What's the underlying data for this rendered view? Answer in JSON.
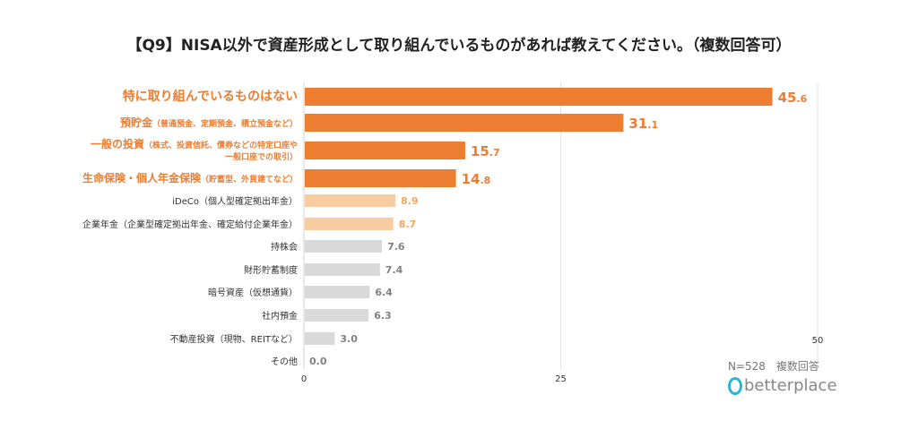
{
  "chart_data": {
    "type": "bar",
    "orientation": "horizontal",
    "title": "【Q9】NISA以外で資産形成として取り組んでいるものがあれば教えてください。（複数回答可）",
    "categories": [
      {
        "main": "特に取り組んでいるものはない",
        "sub": ""
      },
      {
        "main": "預貯金",
        "sub": "（普通預金、定期預金、積立預金など）"
      },
      {
        "main": "一般の投資",
        "sub": "（株式、投資信託、債券などの特定口座や",
        "sub2": "一般口座での取引）"
      },
      {
        "main": "生命保険・個人年金保険",
        "sub": "（貯蓄型、外貨建てなど）"
      },
      {
        "main": "iDeCo（個人型確定拠出年金）",
        "sub": ""
      },
      {
        "main": "企業年金（企業型確定拠出年金、確定給付企業年金）",
        "sub": ""
      },
      {
        "main": "持株会",
        "sub": ""
      },
      {
        "main": "財形貯蓄制度",
        "sub": ""
      },
      {
        "main": "暗号資産（仮想通貨）",
        "sub": ""
      },
      {
        "main": "社内預金",
        "sub": ""
      },
      {
        "main": "不動産投資（現物、REITなど）",
        "sub": ""
      },
      {
        "main": "その他",
        "sub": ""
      }
    ],
    "values": [
      45.6,
      31.1,
      15.7,
      14.8,
      8.9,
      8.7,
      7.6,
      7.4,
      6.4,
      6.3,
      3.0,
      0.0
    ],
    "tier": [
      "top",
      "top",
      "top",
      "top",
      "mid",
      "mid",
      "low",
      "low",
      "low",
      "low",
      "low",
      "low"
    ],
    "xlim": [
      0,
      50
    ],
    "xticks": [
      "0",
      "25",
      "50"
    ],
    "colors": {
      "top": "#ED7D31",
      "mid": "#F8CBA0",
      "low": "#D9D9D9",
      "top_text": "#ED7D31",
      "mid_text": "#F2A65E",
      "low_text": "#808080"
    },
    "grid": true
  },
  "note": "N=528　複数回答",
  "logo": "betterplace"
}
